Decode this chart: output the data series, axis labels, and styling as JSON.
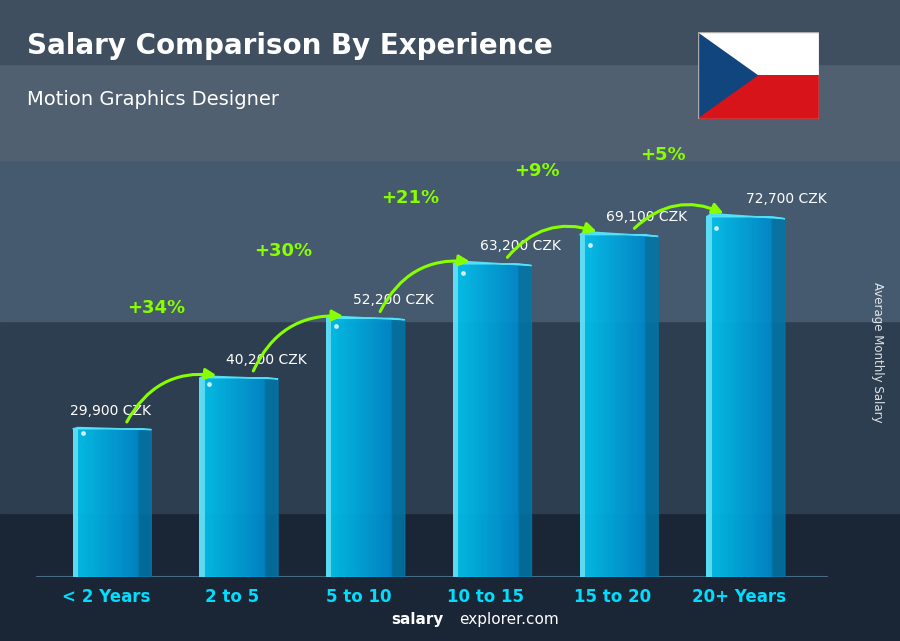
{
  "title": "Salary Comparison By Experience",
  "subtitle": "Motion Graphics Designer",
  "categories": [
    "< 2 Years",
    "2 to 5",
    "5 to 10",
    "10 to 15",
    "15 to 20",
    "20+ Years"
  ],
  "values": [
    29900,
    40200,
    52200,
    63200,
    69100,
    72700
  ],
  "labels": [
    "29,900 CZK",
    "40,200 CZK",
    "52,200 CZK",
    "63,200 CZK",
    "69,100 CZK",
    "72,700 CZK"
  ],
  "pct_changes": [
    "+34%",
    "+30%",
    "+21%",
    "+9%",
    "+5%"
  ],
  "bar_face_color": "#00c8f0",
  "bar_right_color": "#0077aa",
  "bar_top_color": "#55e8ff",
  "bar_left_color": "#88f4ff",
  "bar_highlight_color": "#aaffff",
  "ylabel": "Average Monthly Salary",
  "footer_normal": "explorer.com",
  "footer_bold": "salary",
  "title_color": "#ffffff",
  "subtitle_color": "#ffffff",
  "label_color": "#ffffff",
  "pct_color": "#88ff00",
  "xticklabel_color": "#00ddff",
  "footer_color": "#ffffff",
  "ylim": [
    0,
    88000
  ],
  "bg_color": "#3a4a5a",
  "bar_width": 0.52,
  "bar_depth": 0.1,
  "n_bars": 6
}
